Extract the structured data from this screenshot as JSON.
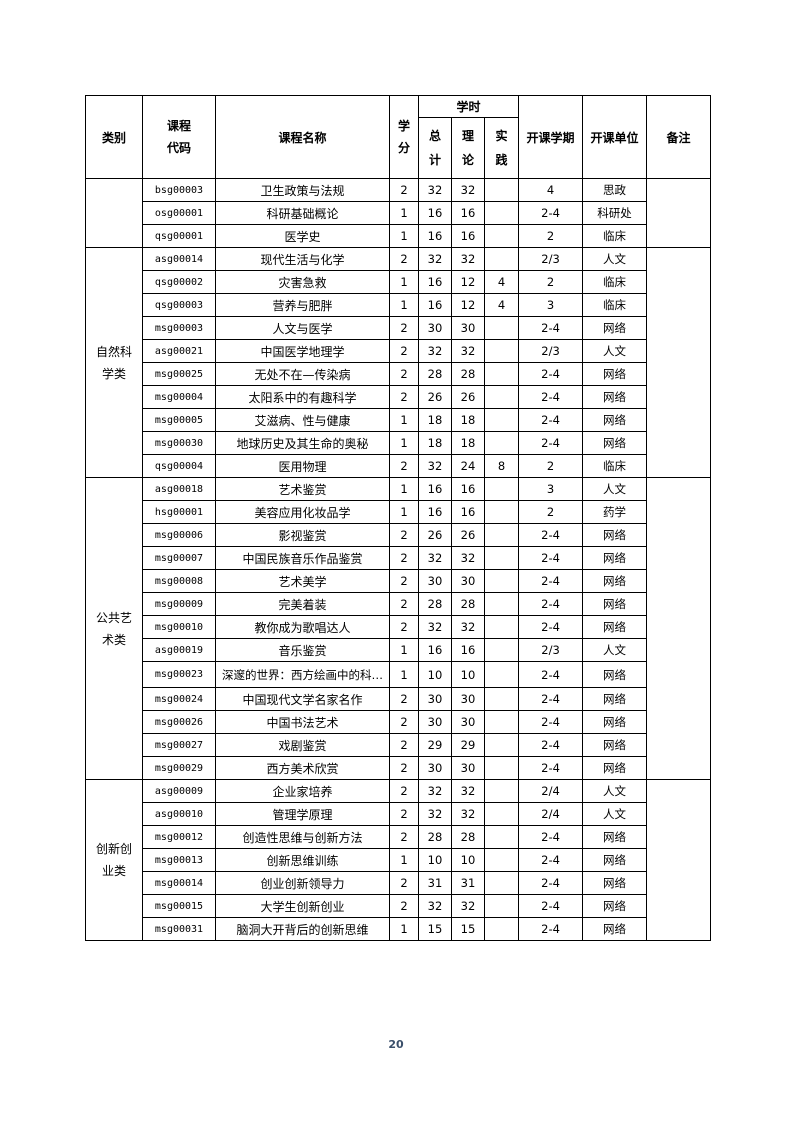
{
  "headers": {
    "category": "类别",
    "code": "课程\n代码",
    "name": "课程名称",
    "credit": "学\n分",
    "hours": "学时",
    "total": "总\n计",
    "theory": "理\n论",
    "practice": "实\n践",
    "semester": "开课学期",
    "unit": "开课单位",
    "remark": "备注"
  },
  "groups": [
    {
      "category": "",
      "remark": "",
      "rows": [
        [
          "bsg00003",
          "卫生政策与法规",
          "2",
          "32",
          "32",
          "",
          "4",
          "思政"
        ],
        [
          "osg00001",
          "科研基础概论",
          "1",
          "16",
          "16",
          "",
          "2-4",
          "科研处"
        ],
        [
          "qsg00001",
          "医学史",
          "1",
          "16",
          "16",
          "",
          "2",
          "临床"
        ]
      ]
    },
    {
      "category": "自然科学类",
      "remark": "",
      "rows": [
        [
          "asg00014",
          "现代生活与化学",
          "2",
          "32",
          "32",
          "",
          "2/3",
          "人文"
        ],
        [
          "qsg00002",
          "灾害急救",
          "1",
          "16",
          "12",
          "4",
          "2",
          "临床"
        ],
        [
          "qsg00003",
          "营养与肥胖",
          "1",
          "16",
          "12",
          "4",
          "3",
          "临床"
        ],
        [
          "msg00003",
          "人文与医学",
          "2",
          "30",
          "30",
          "",
          "2-4",
          "网络"
        ],
        [
          "asg00021",
          "中国医学地理学",
          "2",
          "32",
          "32",
          "",
          "2/3",
          "人文"
        ],
        [
          "msg00025",
          "无处不在—传染病",
          "2",
          "28",
          "28",
          "",
          "2-4",
          "网络"
        ],
        [
          "msg00004",
          "太阳系中的有趣科学",
          "2",
          "26",
          "26",
          "",
          "2-4",
          "网络"
        ],
        [
          "msg00005",
          "艾滋病、性与健康",
          "1",
          "18",
          "18",
          "",
          "2-4",
          "网络"
        ],
        [
          "msg00030",
          "地球历史及其生命的奥秘",
          "1",
          "18",
          "18",
          "",
          "2-4",
          "网络"
        ],
        [
          "qsg00004",
          "医用物理",
          "2",
          "32",
          "24",
          "8",
          "2",
          "临床"
        ]
      ]
    },
    {
      "category": "公共艺术类",
      "remark": "",
      "rows": [
        [
          "asg00018",
          "艺术鉴赏",
          "1",
          "16",
          "16",
          "",
          "3",
          "人文"
        ],
        [
          "hsg00001",
          "美容应用化妆品学",
          "1",
          "16",
          "16",
          "",
          "2",
          "药学"
        ],
        [
          "msg00006",
          "影视鉴赏",
          "2",
          "26",
          "26",
          "",
          "2-4",
          "网络"
        ],
        [
          "msg00007",
          "中国民族音乐作品鉴赏",
          "2",
          "32",
          "32",
          "",
          "2-4",
          "网络"
        ],
        [
          "msg00008",
          "艺术美学",
          "2",
          "30",
          "30",
          "",
          "2-4",
          "网络"
        ],
        [
          "msg00009",
          "完美着装",
          "2",
          "28",
          "28",
          "",
          "2-4",
          "网络"
        ],
        [
          "msg00010",
          "教你成为歌唱达人",
          "2",
          "32",
          "32",
          "",
          "2-4",
          "网络"
        ],
        [
          "asg00019",
          "音乐鉴赏",
          "1",
          "16",
          "16",
          "",
          "2/3",
          "人文"
        ],
        [
          "msg00023",
          "深邃的世界：西方绘画中的科…",
          "1",
          "10",
          "10",
          "",
          "2-4",
          "网络"
        ],
        [
          "msg00024",
          "中国现代文学名家名作",
          "2",
          "30",
          "30",
          "",
          "2-4",
          "网络"
        ],
        [
          "msg00026",
          "中国书法艺术",
          "2",
          "30",
          "30",
          "",
          "2-4",
          "网络"
        ],
        [
          "msg00027",
          "戏剧鉴赏",
          "2",
          "29",
          "29",
          "",
          "2-4",
          "网络"
        ],
        [
          "msg00029",
          "西方美术欣赏",
          "2",
          "30",
          "30",
          "",
          "2-4",
          "网络"
        ]
      ]
    },
    {
      "category": "创新创业类",
      "remark": "",
      "rows": [
        [
          "asg00009",
          "企业家培养",
          "2",
          "32",
          "32",
          "",
          "2/4",
          "人文"
        ],
        [
          "asg00010",
          "管理学原理",
          "2",
          "32",
          "32",
          "",
          "2/4",
          "人文"
        ],
        [
          "msg00012",
          "创造性思维与创新方法",
          "2",
          "28",
          "28",
          "",
          "2-4",
          "网络"
        ],
        [
          "msg00013",
          "创新思维训练",
          "1",
          "10",
          "10",
          "",
          "2-4",
          "网络"
        ],
        [
          "msg00014",
          "创业创新领导力",
          "2",
          "31",
          "31",
          "",
          "2-4",
          "网络"
        ],
        [
          "msg00015",
          "大学生创新创业",
          "2",
          "32",
          "32",
          "",
          "2-4",
          "网络"
        ],
        [
          "msg00031",
          "脑洞大开背后的创新思维",
          "1",
          "15",
          "15",
          "",
          "2-4",
          "网络"
        ]
      ]
    }
  ],
  "page_number": "20"
}
